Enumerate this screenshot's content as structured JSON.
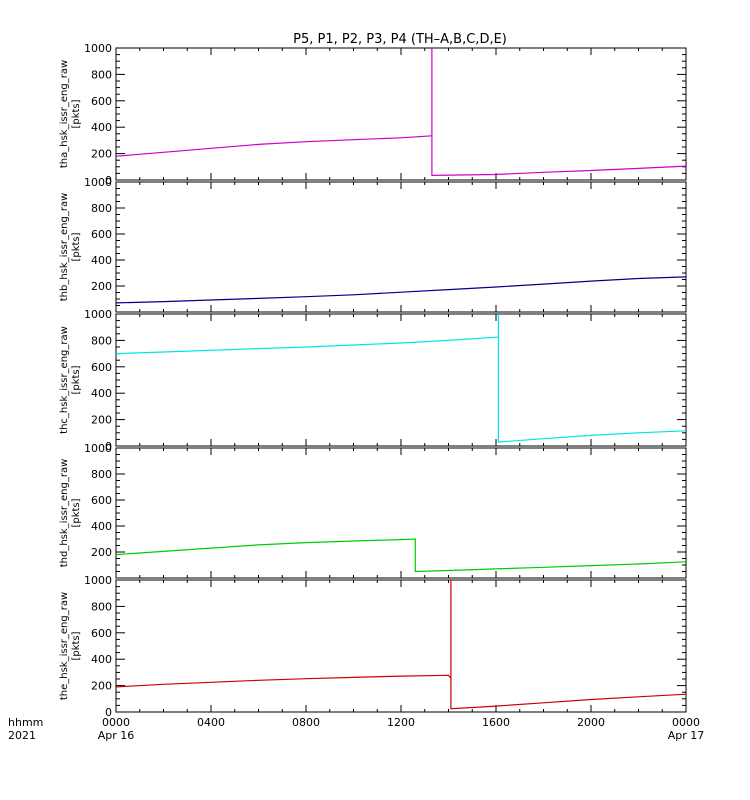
{
  "title": "P5, P1, P2, P3, P4 (TH–A,B,C,D,E)",
  "xaxis": {
    "left_label_line1": "hhmm",
    "left_label_line2": "2021",
    "tick_labels": [
      "0000",
      "0400",
      "0800",
      "1200",
      "1600",
      "2000",
      "0000"
    ],
    "date_labels": [
      "Apr 16",
      "Apr 17"
    ]
  },
  "chart_data": {
    "type": "line",
    "x_unit": "hours since 0000 Apr 16 2021",
    "xlim": [
      0,
      24
    ],
    "x_ticks_hours": [
      0,
      4,
      8,
      12,
      16,
      20,
      24
    ],
    "panels": [
      {
        "ylabel": "tha_hsk_issr_eng_raw",
        "yunit": "[pkts]",
        "color": "#cc00cc",
        "ylim": [
          0,
          1000
        ],
        "yticks": [
          0,
          200,
          400,
          600,
          800,
          1000
        ],
        "points": [
          [
            0,
            180
          ],
          [
            2,
            210
          ],
          [
            4,
            240
          ],
          [
            6,
            270
          ],
          [
            8,
            290
          ],
          [
            10,
            305
          ],
          [
            12,
            320
          ],
          [
            13.3,
            335
          ],
          [
            13.3,
            1000
          ],
          [
            13.3,
            35
          ],
          [
            16,
            42
          ],
          [
            18,
            58
          ],
          [
            20,
            72
          ],
          [
            22,
            88
          ],
          [
            24,
            105
          ]
        ]
      },
      {
        "ylabel": "thb_hsk_issr_eng_raw",
        "yunit": "[pkts]",
        "color": "#00008b",
        "ylim": [
          0,
          1000
        ],
        "yticks": [
          200,
          400,
          600,
          800,
          1000
        ],
        "points": [
          [
            0,
            70
          ],
          [
            2,
            80
          ],
          [
            4,
            92
          ],
          [
            6,
            105
          ],
          [
            8,
            118
          ],
          [
            10,
            132
          ],
          [
            12,
            152
          ],
          [
            14,
            172
          ],
          [
            16,
            192
          ],
          [
            18,
            215
          ],
          [
            20,
            238
          ],
          [
            22,
            258
          ],
          [
            24,
            270
          ]
        ]
      },
      {
        "ylabel": "thc_hsk_issr_eng_raw",
        "yunit": "[pkts]",
        "color": "#00e5e5",
        "ylim": [
          0,
          1000
        ],
        "yticks": [
          0,
          200,
          400,
          600,
          800,
          1000
        ],
        "points": [
          [
            0,
            700
          ],
          [
            2,
            712
          ],
          [
            4,
            725
          ],
          [
            6,
            738
          ],
          [
            8,
            750
          ],
          [
            10,
            765
          ],
          [
            12,
            780
          ],
          [
            14,
            800
          ],
          [
            16.1,
            825
          ],
          [
            16.1,
            1000
          ],
          [
            16.1,
            30
          ],
          [
            18,
            55
          ],
          [
            20,
            80
          ],
          [
            22,
            100
          ],
          [
            24,
            115
          ]
        ]
      },
      {
        "ylabel": "thd_hsk_issr_eng_raw",
        "yunit": "[pkts]",
        "color": "#00cc00",
        "ylim": [
          0,
          1000
        ],
        "yticks": [
          200,
          400,
          600,
          800,
          1000
        ],
        "points": [
          [
            0,
            180
          ],
          [
            2,
            205
          ],
          [
            4,
            230
          ],
          [
            6,
            255
          ],
          [
            8,
            272
          ],
          [
            10,
            285
          ],
          [
            12,
            295
          ],
          [
            12.6,
            300
          ],
          [
            12.6,
            50
          ],
          [
            14,
            58
          ],
          [
            16,
            70
          ],
          [
            18,
            82
          ],
          [
            20,
            95
          ],
          [
            22,
            108
          ],
          [
            24,
            125
          ]
        ]
      },
      {
        "ylabel": "the_hsk_issr_eng_raw",
        "yunit": "[pkts]",
        "color": "#cc0000",
        "ylim": [
          0,
          1000
        ],
        "yticks": [
          0,
          200,
          400,
          600,
          800,
          1000
        ],
        "points": [
          [
            0,
            190
          ],
          [
            2,
            210
          ],
          [
            4,
            225
          ],
          [
            6,
            240
          ],
          [
            8,
            252
          ],
          [
            10,
            262
          ],
          [
            12,
            272
          ],
          [
            14,
            278
          ],
          [
            14.1,
            255
          ],
          [
            14.1,
            1000
          ],
          [
            14.1,
            25
          ],
          [
            16,
            45
          ],
          [
            18,
            70
          ],
          [
            20,
            95
          ],
          [
            22,
            115
          ],
          [
            24,
            135
          ]
        ]
      }
    ]
  }
}
